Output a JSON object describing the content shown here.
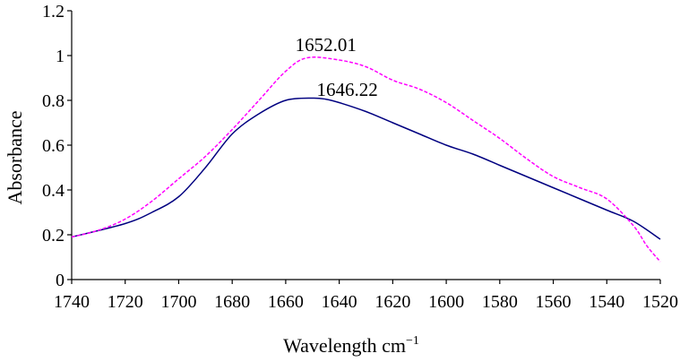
{
  "chart_data": {
    "type": "line",
    "title": "",
    "xlabel": "Wavelength cm",
    "xlabel_superscript": "−1",
    "ylabel": "Absorbance",
    "xlim": [
      1740,
      1520
    ],
    "ylim": [
      0,
      1.2
    ],
    "x_reversed": true,
    "xticks": [
      "1740",
      "1720",
      "1700",
      "1680",
      "1660",
      "1640",
      "1620",
      "1600",
      "1580",
      "1560",
      "1540",
      "1520"
    ],
    "yticks": [
      "0",
      "0.2",
      "0.4",
      "0.6",
      "0.8",
      "1",
      "1.2"
    ],
    "grid": false,
    "series": [
      {
        "color": "#000080",
        "style": "solid",
        "x": [
          1740,
          1720,
          1710,
          1700,
          1690,
          1680,
          1670,
          1660,
          1650,
          1645,
          1640,
          1630,
          1620,
          1610,
          1600,
          1590,
          1580,
          1570,
          1560,
          1550,
          1540,
          1530,
          1520
        ],
        "y": [
          0.19,
          0.25,
          0.3,
          0.37,
          0.5,
          0.65,
          0.74,
          0.8,
          0.81,
          0.805,
          0.79,
          0.75,
          0.7,
          0.65,
          0.6,
          0.56,
          0.51,
          0.46,
          0.41,
          0.36,
          0.31,
          0.26,
          0.18
        ]
      },
      {
        "color": "#ff00ff",
        "style": "dashed",
        "x": [
          1740,
          1730,
          1720,
          1710,
          1700,
          1690,
          1680,
          1670,
          1660,
          1652,
          1640,
          1630,
          1620,
          1610,
          1600,
          1590,
          1580,
          1570,
          1560,
          1550,
          1540,
          1530,
          1525,
          1520
        ],
        "y": [
          0.19,
          0.22,
          0.27,
          0.35,
          0.45,
          0.55,
          0.67,
          0.8,
          0.93,
          0.99,
          0.98,
          0.95,
          0.89,
          0.85,
          0.79,
          0.71,
          0.63,
          0.54,
          0.46,
          0.41,
          0.36,
          0.24,
          0.15,
          0.08
        ]
      }
    ],
    "annotations": [
      {
        "text": "1652.01",
        "x": 1645,
        "y": 1.02
      },
      {
        "text": "1646.22",
        "x": 1637,
        "y": 0.82
      }
    ]
  }
}
